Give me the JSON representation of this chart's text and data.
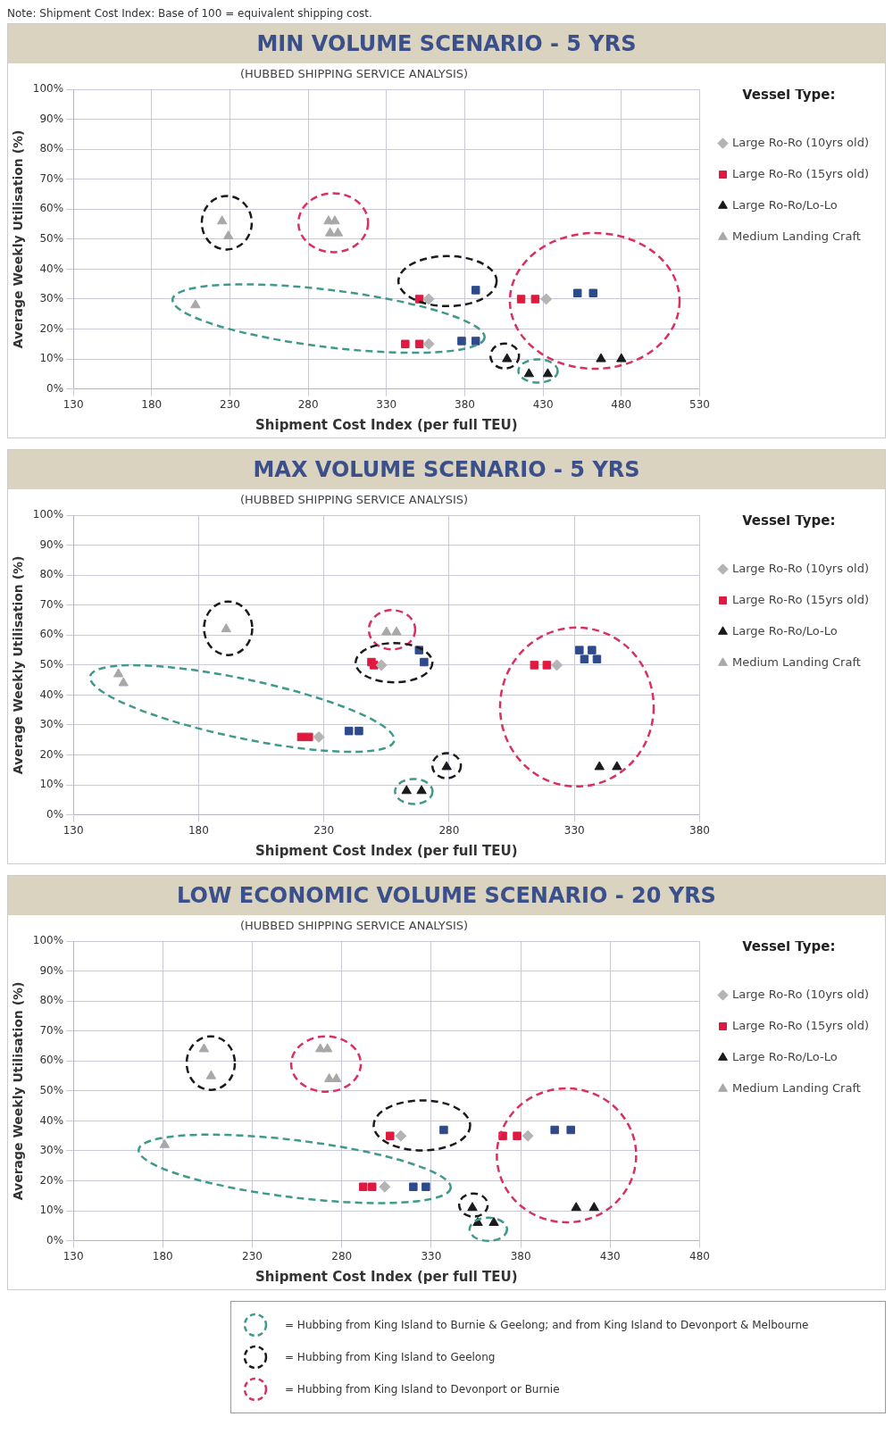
{
  "chart_data": [
    {
      "type": "scatter",
      "title": "MIN VOLUME SCENARIO - 5 YRS",
      "subtitle": "(HUBBED SHIPPING SERVICE ANALYSIS)",
      "xlabel": "Shipment Cost Index (per full TEU)",
      "ylabel": "Average Weekly Utilisation (%)",
      "legend_title": "Vessel Type:",
      "legend": "right",
      "grid": true,
      "annotations": [
        "Note: Shipment Cost Index: Base of 100 = equivalent shipping cost."
      ],
      "xlim": [
        130,
        530
      ],
      "xticks": [
        130,
        180,
        230,
        280,
        330,
        380,
        430,
        480,
        530
      ],
      "ylim": [
        0,
        100
      ],
      "yticks": [
        {
          "value": 0,
          "label": "0%"
        },
        {
          "value": 10,
          "label": "10%"
        },
        {
          "value": 20,
          "label": "20%"
        },
        {
          "value": 30,
          "label": "30%"
        },
        {
          "value": 40,
          "label": "40%"
        },
        {
          "value": 50,
          "label": "50%"
        },
        {
          "value": 60,
          "label": "60%"
        },
        {
          "value": 70,
          "label": "70%"
        },
        {
          "value": 80,
          "label": "80%"
        },
        {
          "value": 90,
          "label": "90%"
        },
        {
          "value": 100,
          "label": "100%"
        }
      ],
      "series": [
        {
          "name": "Large Ro-Ro (10yrs old)",
          "color": "#b4b4b4",
          "marker": "diamond",
          "x": [
            357,
            357,
            432
          ],
          "values": [
            30,
            15,
            30
          ]
        },
        {
          "name": "Large Ro-Ro (15yrs old)",
          "color": "#e0193f",
          "marker": "square",
          "x": [
            351,
            342,
            351,
            416,
            425
          ],
          "values": [
            30,
            15,
            15,
            30,
            30
          ]
        },
        {
          "name": "Large Ro-Ro/Lo-Lo",
          "color": "#1a1a1a",
          "marker": "triangle",
          "x": [
            407,
            421,
            433,
            467,
            480
          ],
          "values": [
            10,
            5,
            5,
            10,
            10
          ]
        },
        {
          "name": "Medium Landing Craft",
          "color": "#a8a8a8",
          "marker": "triangle",
          "x": [
            225,
            229,
            293,
            297,
            294,
            299,
            208
          ],
          "values": [
            56,
            51,
            56,
            56,
            52,
            52,
            28
          ]
        },
        {
          "color": "#2e4a8a",
          "marker": "square",
          "x": [
            387,
            378,
            387,
            452,
            462
          ],
          "values": [
            33,
            16,
            16,
            32,
            32
          ]
        }
      ]
    },
    {
      "type": "scatter",
      "title": "MAX VOLUME SCENARIO - 5 YRS",
      "subtitle": "(HUBBED SHIPPING SERVICE ANALYSIS)",
      "xlabel": "Shipment Cost Index (per full TEU)",
      "ylabel": "Average Weekly Utilisation (%)",
      "legend_title": "Vessel Type:",
      "legend": "right",
      "grid": true,
      "xlim": [
        130,
        380
      ],
      "xticks": [
        130,
        180,
        230,
        280,
        330,
        380
      ],
      "ylim": [
        0,
        100
      ],
      "yticks": [
        {
          "value": 0,
          "label": "0%"
        },
        {
          "value": 10,
          "label": "10%"
        },
        {
          "value": 20,
          "label": "20%"
        },
        {
          "value": 30,
          "label": "30%"
        },
        {
          "value": 40,
          "label": "40%"
        },
        {
          "value": 50,
          "label": "50%"
        },
        {
          "value": 60,
          "label": "60%"
        },
        {
          "value": 70,
          "label": "70%"
        },
        {
          "value": 80,
          "label": "80%"
        },
        {
          "value": 90,
          "label": "90%"
        },
        {
          "value": 100,
          "label": "100%"
        }
      ],
      "series": [
        {
          "name": "Large Ro-Ro (10yrs old)",
          "color": "#b4b4b4",
          "marker": "diamond",
          "x": [
            253,
            228,
            323
          ],
          "values": [
            50,
            26,
            50
          ]
        },
        {
          "name": "Large Ro-Ro (15yrs old)",
          "color": "#e0193f",
          "marker": "square",
          "x": [
            249,
            250,
            221,
            224,
            314,
            319
          ],
          "values": [
            51,
            50,
            26,
            26,
            50,
            50
          ]
        },
        {
          "name": "Large Ro-Ro/Lo-Lo",
          "color": "#1a1a1a",
          "marker": "triangle",
          "x": [
            279,
            263,
            269,
            340,
            347
          ],
          "values": [
            16,
            8,
            8,
            16,
            16
          ]
        },
        {
          "name": "Medium Landing Craft",
          "color": "#a8a8a8",
          "marker": "triangle",
          "x": [
            148,
            150,
            191,
            255,
            259
          ],
          "values": [
            47,
            44,
            62,
            61,
            61
          ]
        },
        {
          "color": "#2e4a8a",
          "marker": "square",
          "x": [
            268,
            270,
            240,
            244,
            332,
            337,
            334,
            339
          ],
          "values": [
            55,
            51,
            28,
            28,
            55,
            55,
            52,
            52
          ]
        }
      ]
    },
    {
      "type": "scatter",
      "title": "LOW ECONOMIC VOLUME SCENARIO -  20 YRS",
      "subtitle": "(HUBBED SHIPPING SERVICE ANALYSIS)",
      "xlabel": "Shipment Cost Index (per full TEU)",
      "ylabel": "Average Weekly Utilisation (%)",
      "legend_title": "Vessel Type:",
      "legend": "right",
      "grid": true,
      "annotations": [
        "= Hubbing from King Island to Burnie & Geelong; and from King Island to Devonport & Melbourne",
        "= Hubbing from King Island to Geelong",
        "= Hubbing from King Island to Devonport or Burnie"
      ],
      "xlim": [
        130,
        480
      ],
      "xticks": [
        130,
        180,
        230,
        280,
        330,
        380,
        430,
        480
      ],
      "ylim": [
        0,
        100
      ],
      "yticks": [
        {
          "value": 0,
          "label": "0%"
        },
        {
          "value": 10,
          "label": "10%"
        },
        {
          "value": 20,
          "label": "20%"
        },
        {
          "value": 30,
          "label": "30%"
        },
        {
          "value": 40,
          "label": "40%"
        },
        {
          "value": 50,
          "label": "50%"
        },
        {
          "value": 60,
          "label": "60%"
        },
        {
          "value": 70,
          "label": "70%"
        },
        {
          "value": 80,
          "label": "80%"
        },
        {
          "value": 90,
          "label": "90%"
        },
        {
          "value": 100,
          "label": "100%"
        }
      ],
      "series": [
        {
          "name": "Large Ro-Ro (10yrs old)",
          "color": "#b4b4b4",
          "marker": "diamond",
          "x": [
            313,
            304,
            384
          ],
          "values": [
            35,
            18,
            35
          ]
        },
        {
          "name": "Large Ro-Ro (15yrs old)",
          "color": "#e0193f",
          "marker": "square",
          "x": [
            307,
            370,
            378,
            292,
            297
          ],
          "values": [
            35,
            35,
            35,
            18,
            18
          ]
        },
        {
          "name": "Large Ro-Ro/Lo-Lo",
          "color": "#1a1a1a",
          "marker": "triangle",
          "x": [
            353,
            356,
            365,
            411,
            421
          ],
          "values": [
            11,
            6,
            6,
            11,
            11
          ]
        },
        {
          "name": "Medium Landing Craft",
          "color": "#a8a8a8",
          "marker": "triangle",
          "x": [
            203,
            207,
            268,
            272,
            273,
            277,
            181
          ],
          "values": [
            64,
            55,
            64,
            64,
            54,
            54,
            32
          ]
        },
        {
          "color": "#2e4a8a",
          "marker": "square",
          "x": [
            337,
            320,
            327,
            399,
            408
          ],
          "values": [
            37,
            18,
            18,
            37,
            37
          ]
        }
      ]
    }
  ]
}
